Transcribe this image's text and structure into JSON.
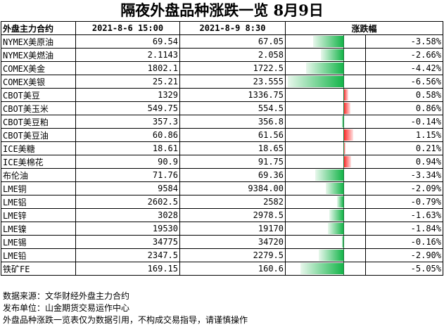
{
  "title": "隔夜外盘品种涨跌一览 8月9日",
  "headers": {
    "name": "外盘主力合约",
    "date1": "2021-8-6 15:00",
    "date2": "2021-8-9 8:30",
    "change": "涨跌幅"
  },
  "rows": [
    {
      "name": "NYMEX美原油",
      "v1": "69.54",
      "v2": "67.05",
      "pct": "-3.58%",
      "value": -3.58
    },
    {
      "name": "NYMEX美燃油",
      "v1": "2.1143",
      "v2": "2.058",
      "pct": "-2.66%",
      "value": -2.66
    },
    {
      "name": "COMEX美金",
      "v1": "1802.1",
      "v2": "1722.5",
      "pct": "-4.42%",
      "value": -4.42
    },
    {
      "name": "COMEX美银",
      "v1": "25.21",
      "v2": "23.555",
      "pct": "-6.56%",
      "value": -6.56
    },
    {
      "name": "CBOT美豆",
      "v1": "1329",
      "v2": "1336.75",
      "pct": "0.58%",
      "value": 0.58
    },
    {
      "name": "CBOT美玉米",
      "v1": "549.75",
      "v2": "554.5",
      "pct": "0.86%",
      "value": 0.86
    },
    {
      "name": "CBOT美豆粕",
      "v1": "357.3",
      "v2": "356.8",
      "pct": "-0.14%",
      "value": -0.14
    },
    {
      "name": "CBOT美豆油",
      "v1": "60.86",
      "v2": "61.56",
      "pct": "1.15%",
      "value": 1.15
    },
    {
      "name": "ICE美糖",
      "v1": "18.61",
      "v2": "18.65",
      "pct": "0.21%",
      "value": 0.21
    },
    {
      "name": "ICE美棉花",
      "v1": "90.9",
      "v2": "91.75",
      "pct": "0.94%",
      "value": 0.94
    },
    {
      "name": "布伦油",
      "v1": "71.76",
      "v2": "69.36",
      "pct": "-3.34%",
      "value": -3.34
    },
    {
      "name": "LME铜",
      "v1": "9584",
      "v2": "9384.00",
      "pct": "-2.09%",
      "value": -2.09
    },
    {
      "name": "LME铝",
      "v1": "2602.5",
      "v2": "2582",
      "pct": "-0.79%",
      "value": -0.79
    },
    {
      "name": "LME锌",
      "v1": "3028",
      "v2": "2978.5",
      "pct": "-1.63%",
      "value": -1.63
    },
    {
      "name": "LME镍",
      "v1": "19530",
      "v2": "19170",
      "pct": "-1.84%",
      "value": -1.84
    },
    {
      "name": "LME锡",
      "v1": "34775",
      "v2": "34720",
      "pct": "-0.16%",
      "value": -0.16
    },
    {
      "name": "LME铅",
      "v1": "2347.5",
      "v2": "2279.5",
      "pct": "-2.90%",
      "value": -2.9
    },
    {
      "name": "铁矿FE",
      "v1": "169.15",
      "v2": "160.6",
      "pct": "-5.05%",
      "value": -5.05
    }
  ],
  "notes": [
    "数据来源：文华财经外盘主力合约",
    "发布单位：山金期货交易运作中心",
    "外盘品种涨跌一览表仅为数据引用，不构成交易指导，请谨慎操作"
  ],
  "colors": {
    "negative": "#15b54a",
    "positive": "#ff1a1a"
  }
}
